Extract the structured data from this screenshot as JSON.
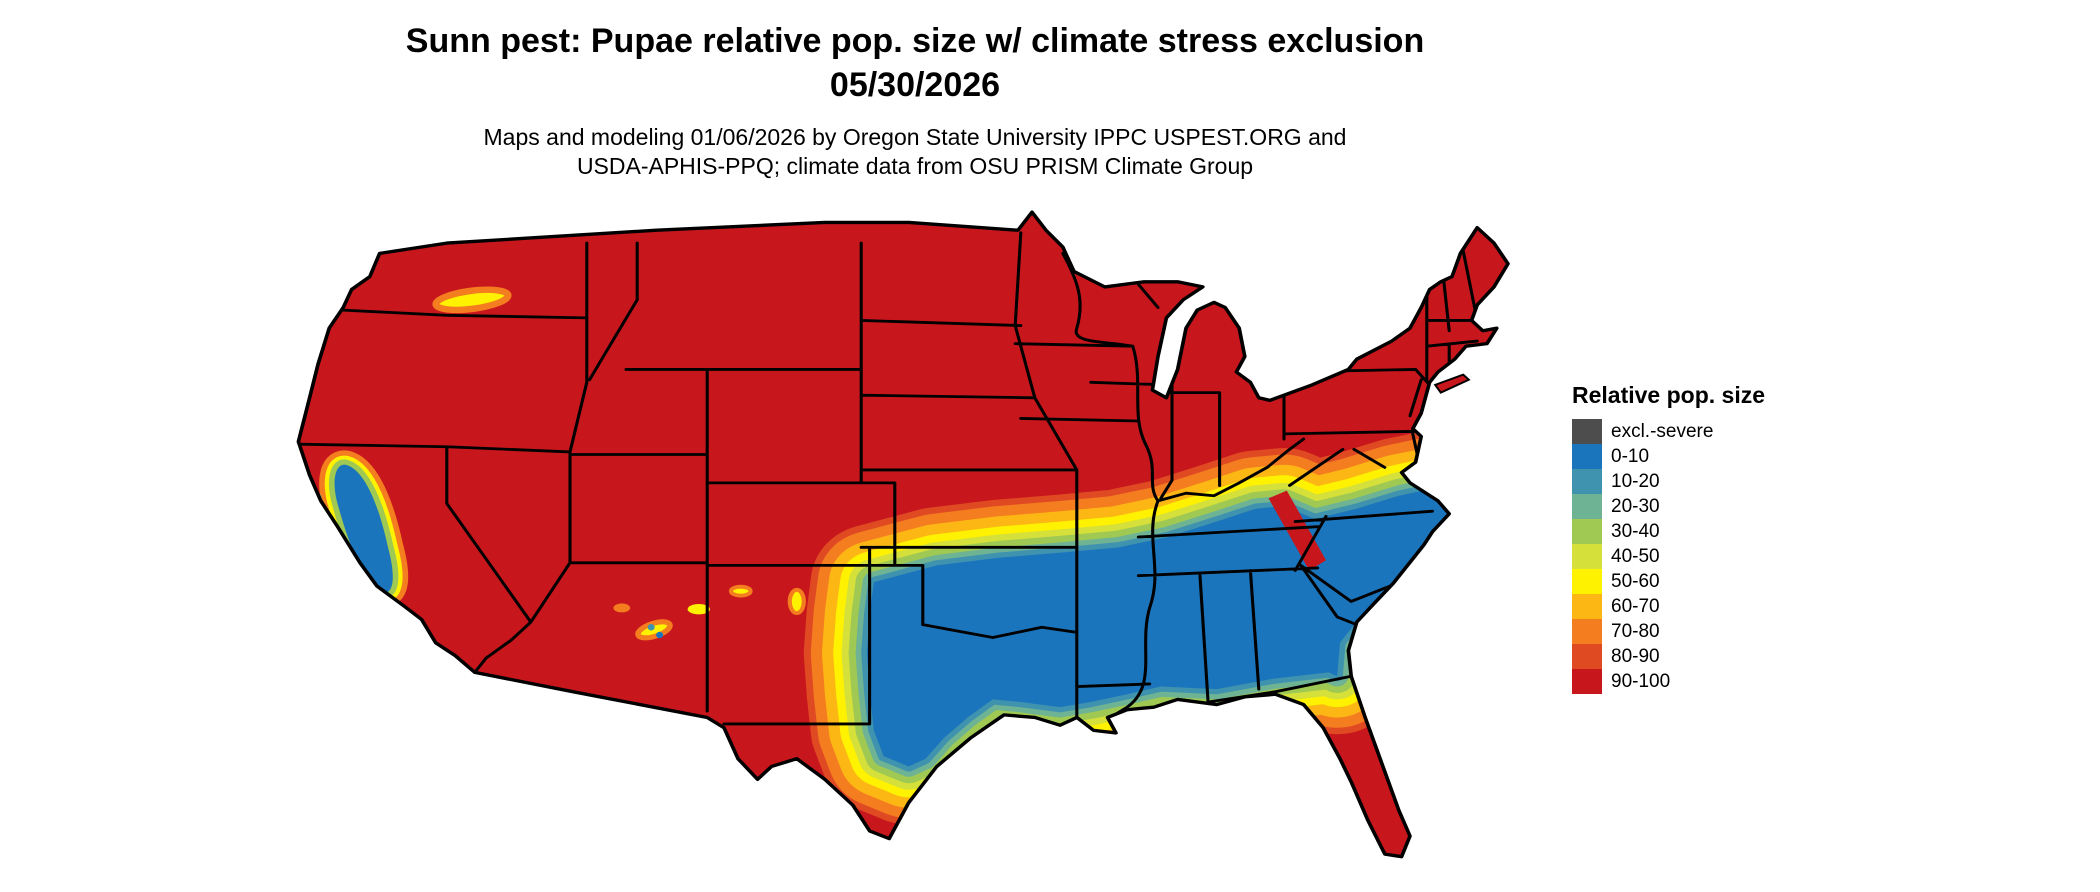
{
  "header": {
    "title_line1": "Sunn pest: Pupae relative pop. size w/ climate stress exclusion",
    "title_line2": "05/30/2026",
    "subtitle_line1": "Maps and modeling 01/06/2026 by Oregon State University IPPC USPEST.ORG and",
    "subtitle_line2": "USDA-APHIS-PPQ; climate data from OSU PRISM Climate Group"
  },
  "legend": {
    "title": "Relative pop. size",
    "items": [
      {
        "label": "excl.-severe",
        "color": "#4d4d4d"
      },
      {
        "label": "0-10",
        "color": "#1b75bc"
      },
      {
        "label": "10-20",
        "color": "#3f93ae"
      },
      {
        "label": "20-30",
        "color": "#6eb394"
      },
      {
        "label": "30-40",
        "color": "#9fc953"
      },
      {
        "label": "40-50",
        "color": "#d6e03a"
      },
      {
        "label": "50-60",
        "color": "#fff200"
      },
      {
        "label": "60-70",
        "color": "#fdb714"
      },
      {
        "label": "70-80",
        "color": "#f47d20"
      },
      {
        "label": "80-90",
        "color": "#e04a23"
      },
      {
        "label": "90-100",
        "color": "#c8161d"
      }
    ]
  },
  "map_description": {
    "region": "Continental United States raster choropleth",
    "high_band_90_100": "Northern states, Rocky Mountain west, Gulf coastline, south Texas and Florida peninsula shown in red (90-100)",
    "low_band_0_10": "South-central and southeastern interior (Texas to the Carolinas) shown in blue (0-10)",
    "transition": "East-west gradient band (orange/yellow/green/teal) across Kansas, Missouri, Ohio Valley and Virginia; similar fringe along the Gulf coast; blue Central Valley pocket in California"
  }
}
